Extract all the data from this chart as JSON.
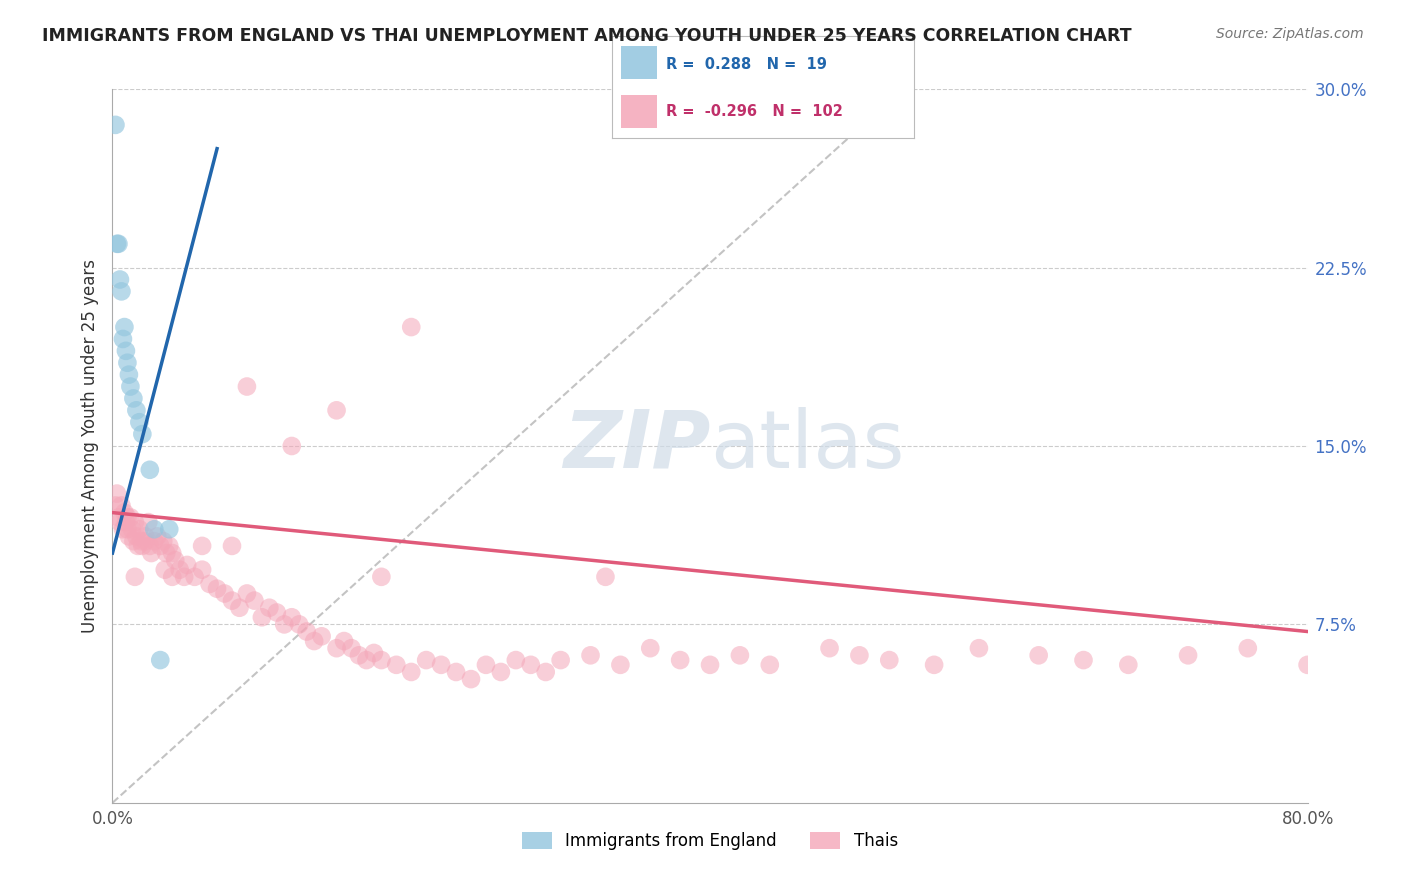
{
  "title": "IMMIGRANTS FROM ENGLAND VS THAI UNEMPLOYMENT AMONG YOUTH UNDER 25 YEARS CORRELATION CHART",
  "source": "Source: ZipAtlas.com",
  "ylabel": "Unemployment Among Youth under 25 years",
  "xlim": [
    0,
    0.8
  ],
  "ylim": [
    0,
    0.3
  ],
  "xtick_labels": [
    "0.0%",
    "80.0%"
  ],
  "yticks_right": [
    0.075,
    0.15,
    0.225,
    0.3
  ],
  "ytick_right_labels": [
    "7.5%",
    "15.0%",
    "22.5%",
    "30.0%"
  ],
  "legend_r_blue": "0.288",
  "legend_n_blue": "19",
  "legend_r_pink": "-0.296",
  "legend_n_pink": "102",
  "legend_label_blue": "Immigrants from England",
  "legend_label_pink": "Thais",
  "blue_color": "#92c5de",
  "pink_color": "#f4a6b8",
  "blue_line_color": "#2166ac",
  "pink_line_color": "#e05a7a",
  "blue_dots_x": [
    0.002,
    0.003,
    0.004,
    0.005,
    0.006,
    0.007,
    0.008,
    0.009,
    0.01,
    0.011,
    0.012,
    0.014,
    0.016,
    0.018,
    0.02,
    0.025,
    0.028,
    0.032,
    0.038
  ],
  "blue_dots_y": [
    0.285,
    0.235,
    0.235,
    0.22,
    0.215,
    0.195,
    0.2,
    0.19,
    0.185,
    0.18,
    0.175,
    0.17,
    0.165,
    0.16,
    0.155,
    0.14,
    0.115,
    0.06,
    0.115
  ],
  "pink_dots_x": [
    0.002,
    0.003,
    0.004,
    0.005,
    0.006,
    0.007,
    0.008,
    0.009,
    0.01,
    0.011,
    0.012,
    0.013,
    0.014,
    0.015,
    0.016,
    0.017,
    0.018,
    0.019,
    0.02,
    0.022,
    0.024,
    0.026,
    0.028,
    0.03,
    0.032,
    0.034,
    0.036,
    0.038,
    0.04,
    0.042,
    0.045,
    0.048,
    0.05,
    0.055,
    0.06,
    0.065,
    0.07,
    0.075,
    0.08,
    0.085,
    0.09,
    0.095,
    0.1,
    0.105,
    0.11,
    0.115,
    0.12,
    0.125,
    0.13,
    0.135,
    0.14,
    0.15,
    0.155,
    0.16,
    0.165,
    0.17,
    0.175,
    0.18,
    0.19,
    0.2,
    0.21,
    0.22,
    0.23,
    0.24,
    0.25,
    0.26,
    0.27,
    0.28,
    0.29,
    0.3,
    0.32,
    0.34,
    0.36,
    0.38,
    0.4,
    0.42,
    0.44,
    0.48,
    0.5,
    0.52,
    0.55,
    0.58,
    0.62,
    0.65,
    0.68,
    0.72,
    0.76,
    0.8,
    0.33,
    0.18,
    0.09,
    0.12,
    0.2,
    0.15,
    0.06,
    0.08,
    0.04,
    0.025,
    0.035,
    0.015,
    0.022,
    0.01
  ],
  "pink_dots_y": [
    0.125,
    0.13,
    0.12,
    0.118,
    0.125,
    0.115,
    0.122,
    0.118,
    0.115,
    0.112,
    0.12,
    0.115,
    0.11,
    0.118,
    0.112,
    0.108,
    0.115,
    0.11,
    0.108,
    0.112,
    0.118,
    0.105,
    0.11,
    0.112,
    0.108,
    0.11,
    0.105,
    0.108,
    0.105,
    0.102,
    0.098,
    0.095,
    0.1,
    0.095,
    0.098,
    0.092,
    0.09,
    0.088,
    0.085,
    0.082,
    0.088,
    0.085,
    0.078,
    0.082,
    0.08,
    0.075,
    0.078,
    0.075,
    0.072,
    0.068,
    0.07,
    0.065,
    0.068,
    0.065,
    0.062,
    0.06,
    0.063,
    0.06,
    0.058,
    0.055,
    0.06,
    0.058,
    0.055,
    0.052,
    0.058,
    0.055,
    0.06,
    0.058,
    0.055,
    0.06,
    0.062,
    0.058,
    0.065,
    0.06,
    0.058,
    0.062,
    0.058,
    0.065,
    0.062,
    0.06,
    0.058,
    0.065,
    0.062,
    0.06,
    0.058,
    0.062,
    0.065,
    0.058,
    0.095,
    0.095,
    0.175,
    0.15,
    0.2,
    0.165,
    0.108,
    0.108,
    0.095,
    0.108,
    0.098,
    0.095,
    0.11,
    0.12
  ],
  "blue_line_x0": 0.0,
  "blue_line_y0": 0.105,
  "blue_line_x1": 0.07,
  "blue_line_y1": 0.275,
  "pink_line_x0": 0.0,
  "pink_line_y0": 0.122,
  "pink_line_x1": 0.8,
  "pink_line_y1": 0.072,
  "ref_line_x0": 0.0,
  "ref_line_y0": 0.0,
  "ref_line_x1": 0.52,
  "ref_line_y1": 0.295
}
